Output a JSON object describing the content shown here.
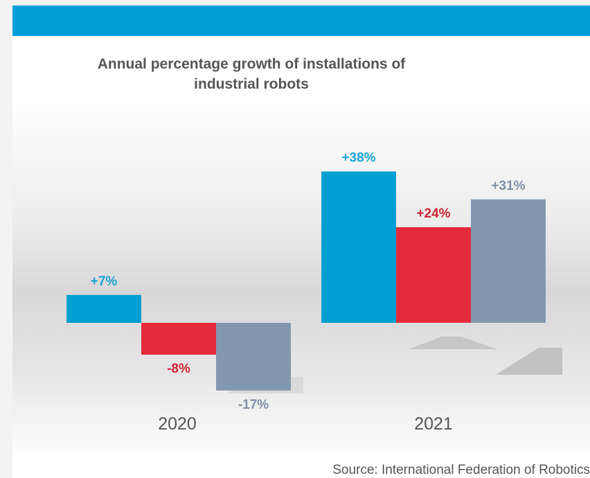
{
  "chart_data": {
    "type": "bar",
    "title": "Annual percentage growth of installations of industrial robots",
    "title_lines": [
      "Annual percentage growth of installations of",
      "industrial robots"
    ],
    "categories": [
      "2020",
      "2021"
    ],
    "series": [
      {
        "color": "#009fd1",
        "label_color": "#1aa3d3",
        "values": [
          7,
          38
        ],
        "labels": [
          "+7%",
          "+38%"
        ]
      },
      {
        "color": "#e42b3c",
        "label_color": "#cc2534",
        "values": [
          -8,
          24
        ],
        "labels": [
          "-8%",
          "+24%"
        ]
      },
      {
        "color": "#8497b0",
        "label_color": "#7f8fa8",
        "values": [
          -17,
          31
        ],
        "labels": [
          "-17%",
          "+31%"
        ]
      }
    ],
    "xlabel": "",
    "ylabel": "",
    "grid": false,
    "legend": "none"
  },
  "source": "Source: International Federation of Robotics",
  "colors": {
    "header_bar": "#009ed6",
    "text": "#555555"
  }
}
